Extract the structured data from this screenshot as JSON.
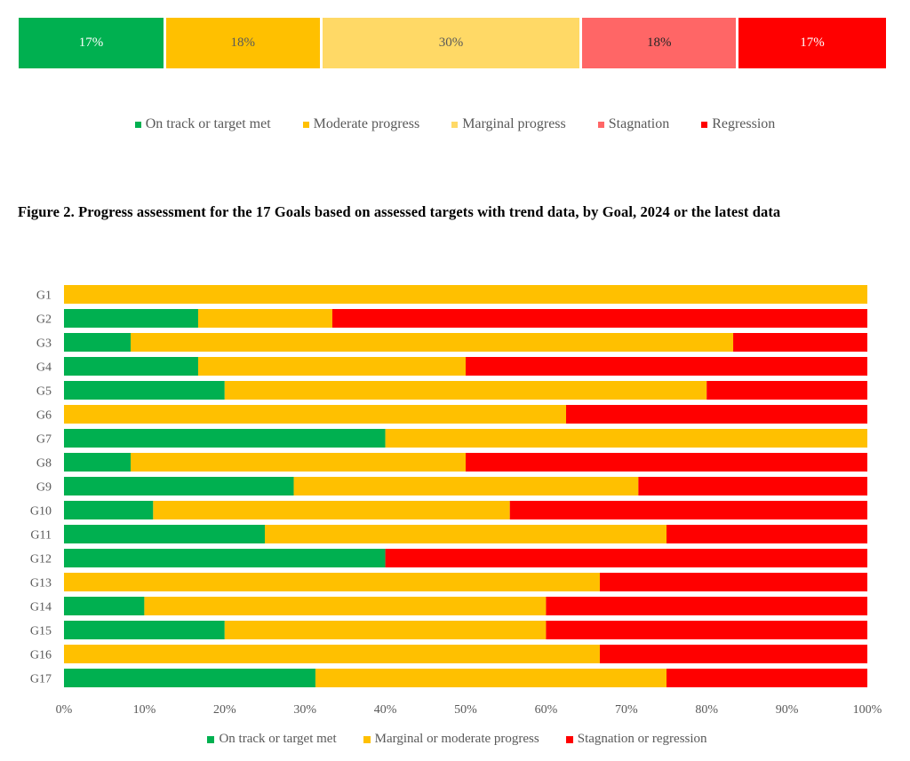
{
  "summary_bar": {
    "segments": [
      {
        "label": "17%",
        "value": 17,
        "color": "#00B050",
        "text_color": "#ffffff",
        "category": "On track or target met"
      },
      {
        "label": "18%",
        "value": 18,
        "color": "#FFC000",
        "text_color": "#595959",
        "category": "Moderate progress"
      },
      {
        "label": "30%",
        "value": 30,
        "color": "#FFD966",
        "text_color": "#595959",
        "category": "Marginal progress"
      },
      {
        "label": "18%",
        "value": 18,
        "color": "#FF6666",
        "text_color": "#262626",
        "category": "Stagnation"
      },
      {
        "label": "17%",
        "value": 17,
        "color": "#FF0000",
        "text_color": "#ffffff",
        "category": "Regression"
      }
    ],
    "legend": [
      {
        "label": "On track or target met",
        "color": "#00B050"
      },
      {
        "label": "Moderate progress",
        "color": "#FFC000"
      },
      {
        "label": "Marginal progress",
        "color": "#FFD966"
      },
      {
        "label": "Stagnation",
        "color": "#FF6666"
      },
      {
        "label": "Regression",
        "color": "#FF0000"
      }
    ]
  },
  "figure": {
    "title": "Figure 2. Progress assessment for the 17 Goals based on assessed targets with trend data, by Goal, 2024 or the latest data"
  },
  "chart_data": {
    "type": "bar",
    "orientation": "horizontal",
    "stacked": true,
    "title": "Figure 2. Progress assessment for the 17 Goals based on assessed targets with trend data, by Goal, 2024 or the latest data",
    "xlabel": "",
    "ylabel": "",
    "xlim": [
      0,
      100
    ],
    "x_ticks": [
      "0%",
      "10%",
      "20%",
      "30%",
      "40%",
      "50%",
      "60%",
      "70%",
      "80%",
      "90%",
      "100%"
    ],
    "grid": false,
    "legend_position": "bottom",
    "categories": [
      "G1",
      "G2",
      "G3",
      "G4",
      "G5",
      "G6",
      "G7",
      "G8",
      "G9",
      "G10",
      "G11",
      "G12",
      "G13",
      "G14",
      "G15",
      "G16",
      "G17"
    ],
    "series": [
      {
        "name": "On track or target met",
        "color": "#00B050",
        "values": [
          0,
          16.7,
          8.3,
          16.7,
          20,
          0,
          40,
          8.3,
          28.6,
          11.1,
          25,
          40,
          0,
          10,
          20,
          0,
          31.3
        ]
      },
      {
        "name": "Marginal or moderate progress",
        "color": "#FFC000",
        "values": [
          100,
          16.7,
          75,
          33.3,
          60,
          62.5,
          60,
          41.7,
          42.9,
          44.4,
          50,
          0,
          66.7,
          50,
          40,
          66.7,
          43.7
        ]
      },
      {
        "name": "Stagnation or regression",
        "color": "#FF0000",
        "values": [
          0,
          66.6,
          16.7,
          50,
          20,
          37.5,
          0,
          50,
          28.5,
          44.5,
          25,
          60,
          33.3,
          40,
          40,
          33.3,
          25
        ]
      }
    ]
  }
}
